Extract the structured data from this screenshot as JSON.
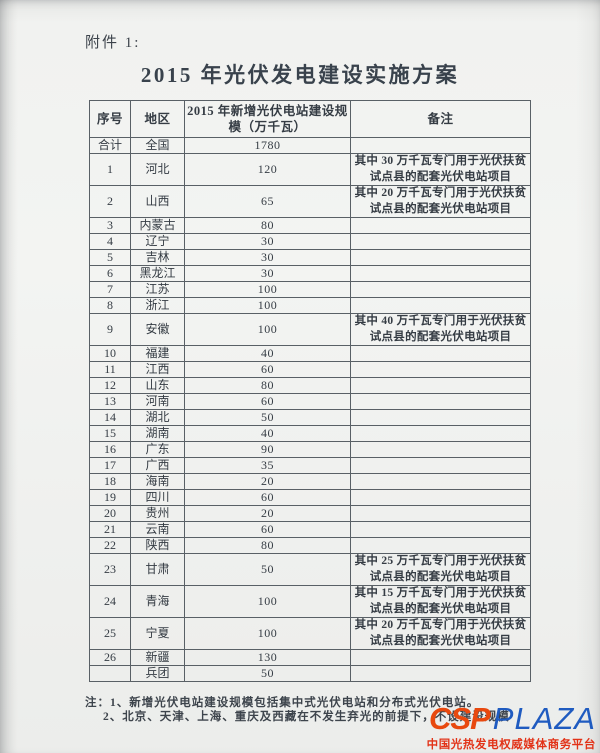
{
  "page": {
    "attachment_label": "附件 1:",
    "title": "2015 年光伏发电建设实施方案"
  },
  "table": {
    "headers": [
      "序号",
      "地区",
      "2015 年新增光伏电站建设规模（万千瓦）",
      "备注"
    ],
    "rows": [
      {
        "no": "合计",
        "region": "全国",
        "capacity": "1780",
        "remark": ""
      },
      {
        "no": "1",
        "region": "河北",
        "capacity": "120",
        "remark": "其中 30 万千瓦专门用于光伏扶贫试点县的配套光伏电站项目"
      },
      {
        "no": "2",
        "region": "山西",
        "capacity": "65",
        "remark": "其中 20 万千瓦专门用于光伏扶贫试点县的配套光伏电站项目"
      },
      {
        "no": "3",
        "region": "内蒙古",
        "capacity": "80",
        "remark": ""
      },
      {
        "no": "4",
        "region": "辽宁",
        "capacity": "30",
        "remark": ""
      },
      {
        "no": "5",
        "region": "吉林",
        "capacity": "30",
        "remark": ""
      },
      {
        "no": "6",
        "region": "黑龙江",
        "capacity": "30",
        "remark": ""
      },
      {
        "no": "7",
        "region": "江苏",
        "capacity": "100",
        "remark": ""
      },
      {
        "no": "8",
        "region": "浙江",
        "capacity": "100",
        "remark": ""
      },
      {
        "no": "9",
        "region": "安徽",
        "capacity": "100",
        "remark": "其中 40 万千瓦专门用于光伏扶贫试点县的配套光伏电站项目"
      },
      {
        "no": "10",
        "region": "福建",
        "capacity": "40",
        "remark": ""
      },
      {
        "no": "11",
        "region": "江西",
        "capacity": "60",
        "remark": ""
      },
      {
        "no": "12",
        "region": "山东",
        "capacity": "80",
        "remark": ""
      },
      {
        "no": "13",
        "region": "河南",
        "capacity": "60",
        "remark": ""
      },
      {
        "no": "14",
        "region": "湖北",
        "capacity": "50",
        "remark": ""
      },
      {
        "no": "15",
        "region": "湖南",
        "capacity": "40",
        "remark": ""
      },
      {
        "no": "16",
        "region": "广东",
        "capacity": "90",
        "remark": ""
      },
      {
        "no": "17",
        "region": "广西",
        "capacity": "35",
        "remark": ""
      },
      {
        "no": "18",
        "region": "海南",
        "capacity": "20",
        "remark": ""
      },
      {
        "no": "19",
        "region": "四川",
        "capacity": "60",
        "remark": ""
      },
      {
        "no": "20",
        "region": "贵州",
        "capacity": "20",
        "remark": ""
      },
      {
        "no": "21",
        "region": "云南",
        "capacity": "60",
        "remark": ""
      },
      {
        "no": "22",
        "region": "陕西",
        "capacity": "80",
        "remark": ""
      },
      {
        "no": "23",
        "region": "甘肃",
        "capacity": "50",
        "remark": "其中 25 万千瓦专门用于光伏扶贫试点县的配套光伏电站项目"
      },
      {
        "no": "24",
        "region": "青海",
        "capacity": "100",
        "remark": "其中 15 万千瓦专门用于光伏扶贫试点县的配套光伏电站项目"
      },
      {
        "no": "25",
        "region": "宁夏",
        "capacity": "100",
        "remark": "其中 20 万千瓦专门用于光伏扶贫试点县的配套光伏电站项目"
      },
      {
        "no": "26",
        "region": "新疆",
        "capacity": "130",
        "remark": ""
      },
      {
        "no": "",
        "region": "兵团",
        "capacity": "50",
        "remark": ""
      }
    ]
  },
  "notes": {
    "line1": "注：1、新增光伏电站建设规模包括集中式光伏电站和分布式光伏电站。",
    "line2": "2、北京、天津、上海、重庆及西藏在不发生弃光的前提下，不设建设规模"
  },
  "logo": {
    "csp": "CSP",
    "plaza": "PLAZA",
    "tagline": "中国光热发电权威媒体商务平台",
    "csp_color": "#e8490f",
    "plaza_color": "#1f5bc0",
    "tagline_color": "#e23318"
  }
}
